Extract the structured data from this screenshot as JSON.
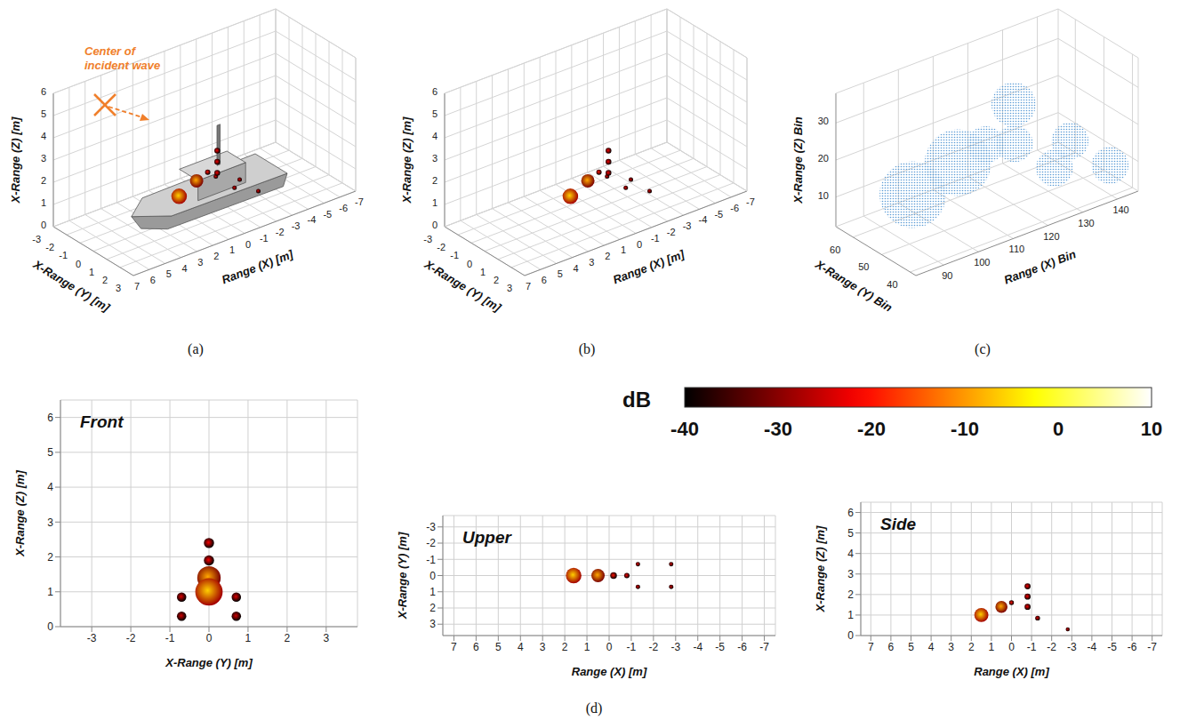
{
  "chart_data": [
    {
      "type": "scatter3d",
      "panel": "(a)",
      "annotation": "Center of incident wave",
      "x_label": "Range (X) [m]",
      "y_label": "X-Range (Y) [m]",
      "z_label": "X-Range (Z) [m]",
      "xlim": [
        7,
        -7
      ],
      "ylim": [
        3,
        -3
      ],
      "zlim": [
        0,
        6
      ],
      "xticks": [
        7,
        6,
        5,
        4,
        3,
        2,
        1,
        0,
        -1,
        -2,
        -3,
        -4,
        -5,
        -6,
        -7
      ],
      "yticks": [
        3,
        2,
        1,
        0,
        -1,
        -2,
        -3
      ],
      "zticks": [
        0,
        1,
        2,
        3,
        4,
        5,
        6
      ],
      "grid": true,
      "points": [
        {
          "x": -2.8,
          "y": -0.7,
          "z": 0.3,
          "size": 0.1,
          "db": -33
        },
        {
          "x": -2.8,
          "y": 0.7,
          "z": 0.3,
          "size": 0.1,
          "db": -33
        },
        {
          "x": -1.3,
          "y": -0.7,
          "z": 0.85,
          "size": 0.1,
          "db": -32
        },
        {
          "x": -1.3,
          "y": 0.7,
          "z": 0.85,
          "size": 0.1,
          "db": -32
        },
        {
          "x": -0.8,
          "y": 0,
          "z": 2.4,
          "size": 0.13,
          "db": -30
        },
        {
          "x": -0.8,
          "y": 0,
          "z": 1.9,
          "size": 0.13,
          "db": -30
        },
        {
          "x": -0.8,
          "y": 0,
          "z": 1.4,
          "size": 0.13,
          "db": -30
        },
        {
          "x": -0.2,
          "y": 0,
          "z": 1.6,
          "size": 0.12,
          "db": -28
        },
        {
          "x": 0.5,
          "y": 0,
          "z": 1.4,
          "size": 0.3,
          "db": -17
        },
        {
          "x": 1.6,
          "y": 0,
          "z": 1.0,
          "size": 0.35,
          "db": -14
        }
      ]
    },
    {
      "type": "scatter3d",
      "panel": "(b)",
      "x_label": "Range (X) [m]",
      "y_label": "X-Range (Y) [m]",
      "z_label": "X-Range (Z) [m]",
      "xlim": [
        7,
        -7
      ],
      "ylim": [
        3,
        -3
      ],
      "zlim": [
        0,
        6
      ],
      "xticks": [
        7,
        6,
        5,
        4,
        3,
        2,
        1,
        0,
        -1,
        -2,
        -3,
        -4,
        -5,
        -6,
        -7
      ],
      "yticks": [
        3,
        2,
        1,
        0,
        -1,
        -2,
        -3
      ],
      "zticks": [
        0,
        1,
        2,
        3,
        4,
        5,
        6
      ],
      "grid": true,
      "points": [
        {
          "x": -2.8,
          "y": -0.7,
          "z": 0.3,
          "size": 0.1,
          "db": -33
        },
        {
          "x": -2.8,
          "y": 0.7,
          "z": 0.3,
          "size": 0.1,
          "db": -33
        },
        {
          "x": -1.3,
          "y": -0.7,
          "z": 0.85,
          "size": 0.1,
          "db": -32
        },
        {
          "x": -1.3,
          "y": 0.7,
          "z": 0.85,
          "size": 0.1,
          "db": -32
        },
        {
          "x": -0.8,
          "y": 0,
          "z": 2.4,
          "size": 0.13,
          "db": -30
        },
        {
          "x": -0.8,
          "y": 0,
          "z": 1.9,
          "size": 0.13,
          "db": -30
        },
        {
          "x": -0.8,
          "y": 0,
          "z": 1.4,
          "size": 0.13,
          "db": -30
        },
        {
          "x": -0.2,
          "y": 0,
          "z": 1.6,
          "size": 0.12,
          "db": -28
        },
        {
          "x": 0.5,
          "y": 0,
          "z": 1.4,
          "size": 0.3,
          "db": -17
        },
        {
          "x": 1.6,
          "y": 0,
          "z": 1.0,
          "size": 0.35,
          "db": -14
        }
      ]
    },
    {
      "type": "scatter3d",
      "panel": "(c)",
      "x_label": "Range (X) Bin",
      "y_label": "X-Range (Y) Bin",
      "z_label": "X-Range (Z) Bin",
      "xlim": [
        82,
        146
      ],
      "ylim": [
        38,
        66
      ],
      "zlim": [
        2,
        38
      ],
      "xticks": [
        90,
        100,
        110,
        120,
        130,
        140
      ],
      "yticks": [
        40,
        50,
        60
      ],
      "zticks": [
        10,
        20,
        30
      ],
      "grid": true,
      "color": "#5b9bd5",
      "points": [
        {
          "x": 142,
          "y": 43,
          "z": 8,
          "size": 5
        },
        {
          "x": 142,
          "y": 57,
          "z": 8,
          "size": 5
        },
        {
          "x": 126,
          "y": 43,
          "z": 13,
          "size": 5
        },
        {
          "x": 126,
          "y": 57,
          "z": 13,
          "size": 5
        },
        {
          "x": 120,
          "y": 50,
          "z": 29,
          "size": 6
        },
        {
          "x": 112,
          "y": 50,
          "z": 21,
          "size": 5
        },
        {
          "x": 104,
          "y": 50,
          "z": 19,
          "size": 9
        },
        {
          "x": 91,
          "y": 50,
          "z": 15,
          "size": 9
        }
      ]
    },
    {
      "type": "scatter",
      "title": "Front",
      "x_label": "X-Range (Y) [m]",
      "y_label": "X-Range (Z) [m]",
      "xlim": [
        -3.8,
        3.8
      ],
      "ylim": [
        0,
        6.5
      ],
      "xticks": [
        -3,
        -2,
        -1,
        0,
        1,
        2,
        3
      ],
      "yticks": [
        0,
        1,
        2,
        3,
        4,
        5,
        6
      ],
      "grid": true,
      "points": [
        {
          "x": -0.7,
          "y": 0.3,
          "size": 0.12,
          "db": -33
        },
        {
          "x": 0.7,
          "y": 0.3,
          "size": 0.12,
          "db": -33
        },
        {
          "x": -0.7,
          "y": 0.85,
          "size": 0.12,
          "db": -32
        },
        {
          "x": 0.7,
          "y": 0.85,
          "size": 0.12,
          "db": -32
        },
        {
          "x": 0,
          "y": 2.4,
          "size": 0.13,
          "db": -30
        },
        {
          "x": 0,
          "y": 1.9,
          "size": 0.13,
          "db": -30
        },
        {
          "x": 0,
          "y": 1.4,
          "size": 0.3,
          "db": -17
        },
        {
          "x": 0,
          "y": 1.0,
          "size": 0.35,
          "db": -14
        }
      ]
    },
    {
      "type": "scatter",
      "title": "Upper",
      "x_label": "Range (X) [m]",
      "y_label": "X-Range (Y) [m]",
      "xlim": [
        7.5,
        -7.5
      ],
      "ylim": [
        3.7,
        -3.7
      ],
      "xticks": [
        7,
        6,
        5,
        4,
        3,
        2,
        1,
        0,
        -1,
        -2,
        -3,
        -4,
        -5,
        -6,
        -7
      ],
      "yticks": [
        -3,
        -2,
        -1,
        0,
        1,
        2,
        3
      ],
      "grid": true,
      "points": [
        {
          "x": 1.6,
          "y": 0,
          "size": 0.35,
          "db": -14
        },
        {
          "x": 0.5,
          "y": 0,
          "size": 0.3,
          "db": -17
        },
        {
          "x": -0.2,
          "y": 0,
          "size": 0.15,
          "db": -28
        },
        {
          "x": -0.8,
          "y": 0,
          "size": 0.12,
          "db": -30
        },
        {
          "x": -1.3,
          "y": -0.7,
          "size": 0.1,
          "db": -32
        },
        {
          "x": -1.3,
          "y": 0.7,
          "size": 0.1,
          "db": -32
        },
        {
          "x": -2.8,
          "y": -0.7,
          "size": 0.1,
          "db": -33
        },
        {
          "x": -2.8,
          "y": 0.7,
          "size": 0.1,
          "db": -33
        }
      ]
    },
    {
      "type": "scatter",
      "title": "Side",
      "x_label": "Range (X) [m]",
      "y_label": "X-Range (Z) [m]",
      "xlim": [
        7.5,
        -7.5
      ],
      "ylim": [
        0,
        6.5
      ],
      "xticks": [
        7,
        6,
        5,
        4,
        3,
        2,
        1,
        0,
        -1,
        -2,
        -3,
        -4,
        -5,
        -6,
        -7
      ],
      "yticks": [
        0,
        1,
        2,
        3,
        4,
        5,
        6
      ],
      "grid": true,
      "points": [
        {
          "x": -2.8,
          "y": 0.3,
          "size": 0.1,
          "db": -33
        },
        {
          "x": -1.3,
          "y": 0.85,
          "size": 0.12,
          "db": -32
        },
        {
          "x": -0.8,
          "y": 1.4,
          "size": 0.15,
          "db": -30
        },
        {
          "x": -0.8,
          "y": 1.9,
          "size": 0.15,
          "db": -30
        },
        {
          "x": -0.8,
          "y": 2.4,
          "size": 0.15,
          "db": -30
        },
        {
          "x": 0,
          "y": 1.6,
          "size": 0.12,
          "db": -28
        },
        {
          "x": 0.5,
          "y": 1.4,
          "size": 0.3,
          "db": -17
        },
        {
          "x": 1.5,
          "y": 1.0,
          "size": 0.35,
          "db": -14
        }
      ]
    }
  ],
  "colorbar": {
    "label": "dB",
    "range": [
      -40,
      10
    ],
    "ticks": [
      -40,
      -30,
      -20,
      -10,
      0,
      10
    ]
  },
  "group_panel": "(d)"
}
